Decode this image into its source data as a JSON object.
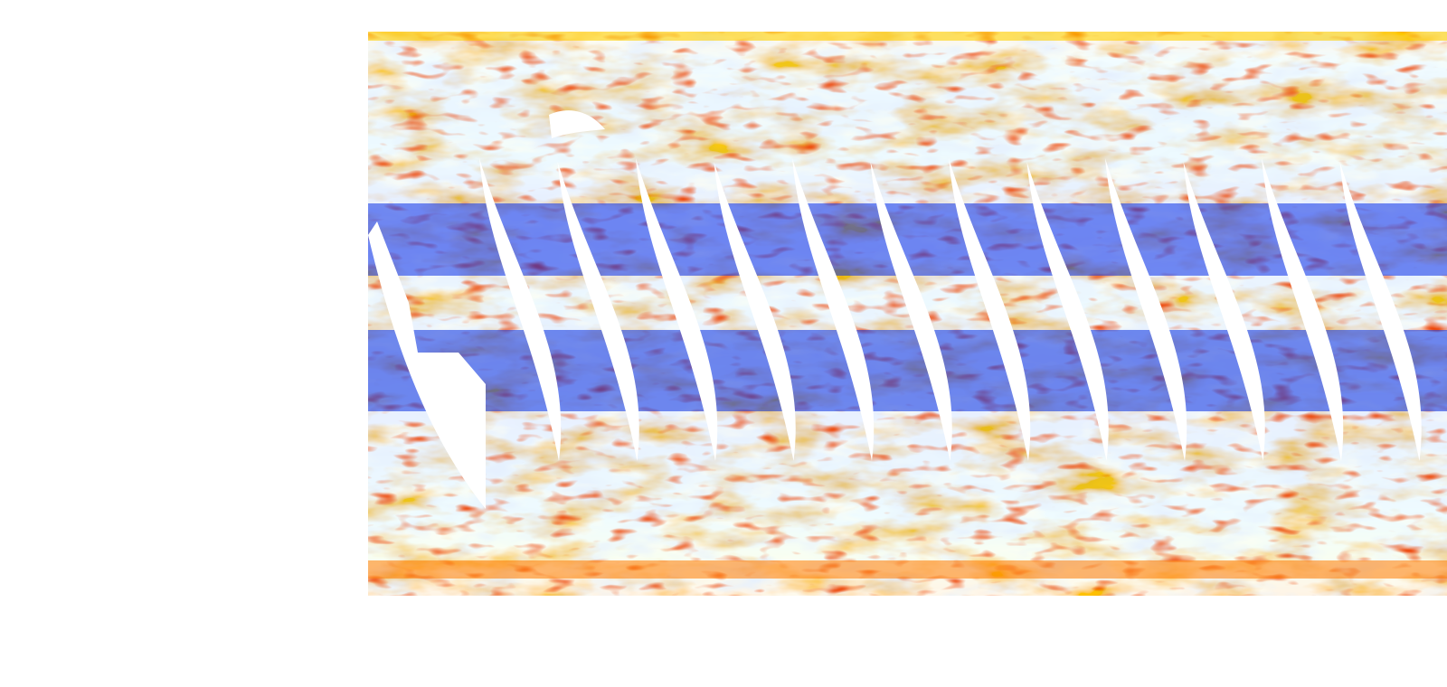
{
  "colormap": {
    "name": "jet",
    "stops": [
      "#0000b0",
      "#0030ff",
      "#00a8ff",
      "#3cf0ff",
      "#c8ff5a",
      "#ffe600",
      "#ff8a00",
      "#e01000",
      "#9a0000"
    ]
  },
  "no_data_color": "#ffffff",
  "swath_gap_count": 14,
  "labels": []
}
